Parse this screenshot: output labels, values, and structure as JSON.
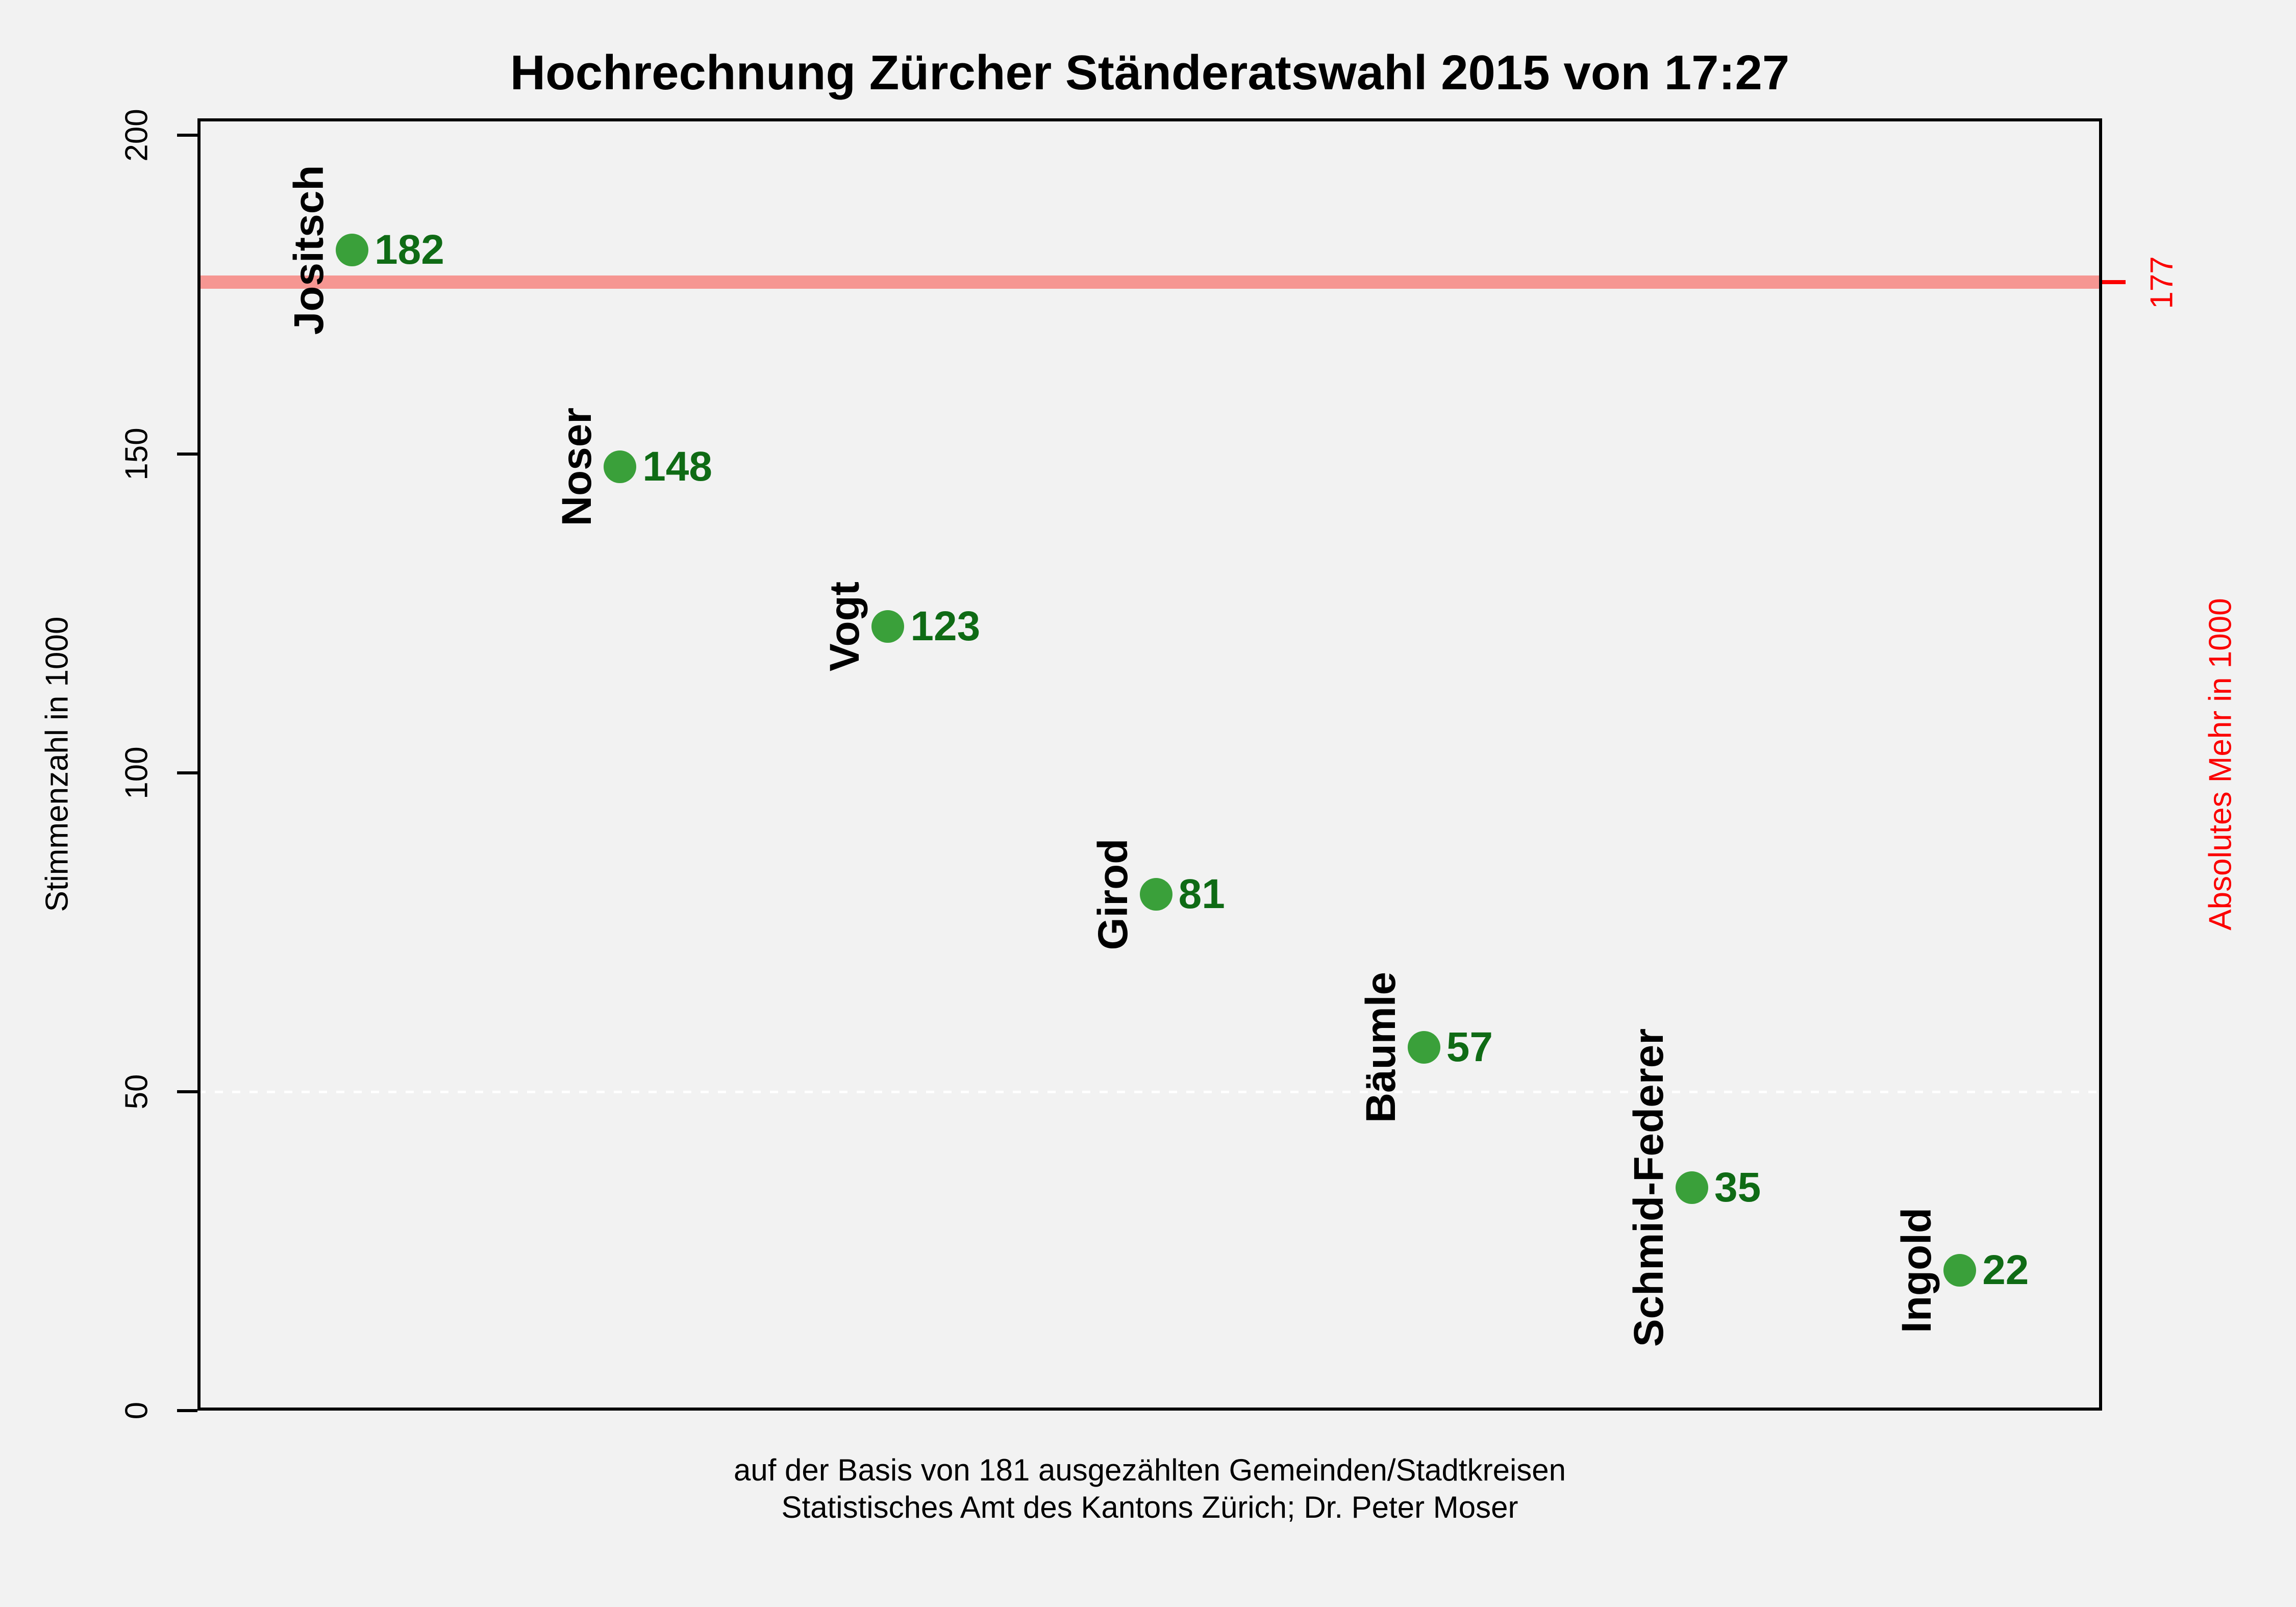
{
  "chart_data": {
    "type": "scatter",
    "title": "Hochrechnung Zürcher Ständeratswahl 2015 von 17:27",
    "categories": [
      "Jositsch",
      "Noser",
      "Vogt",
      "Girod",
      "Bäumle",
      "Schmid-Federer",
      "Ingold"
    ],
    "values": [
      182,
      148,
      123,
      81,
      57,
      35,
      22
    ],
    "ylabel": "Stimmenzahl in 1000",
    "y2label": "Absolutes Mehr in 1000",
    "yticks": [
      0,
      50,
      100,
      150,
      200
    ],
    "ylim": [
      0,
      203
    ],
    "legend_position": "none",
    "grid": {
      "y_value": 50,
      "style": "dotted",
      "color": "#ffffff"
    },
    "threshold": {
      "value": 177,
      "label": "177"
    },
    "caption_line1": "auf der Basis von 181 ausgezählten Gemeinden/Stadtkreisen",
    "caption_line2": "Statistisches Amt des Kantons Zürich; Dr. Peter Moser"
  },
  "colors": {
    "background": "#f2f2f2",
    "point": "#3aa03a",
    "value_label": "#0f6b15",
    "majority_band": "#f69692",
    "majority_accent": "#fb0000",
    "axis": "#000000",
    "gridline": "#ffffff"
  }
}
